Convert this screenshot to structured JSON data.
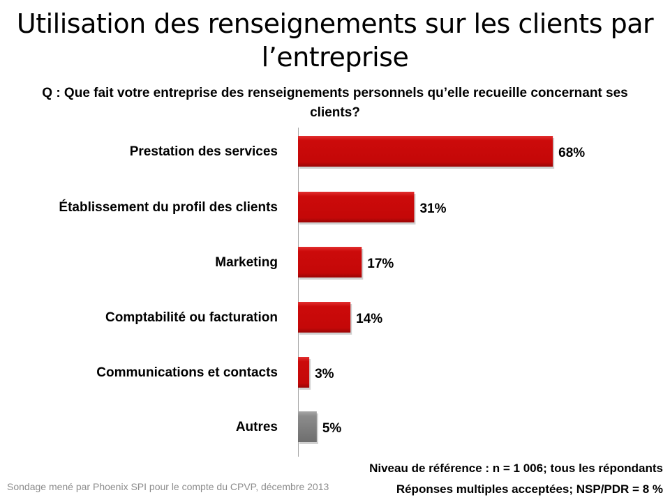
{
  "chart_data": {
    "type": "bar",
    "orientation": "horizontal",
    "title": "Utilisation des renseignements sur les clients par l’entreprise",
    "subtitle": "Q : Que fait votre entreprise des renseignements personnels qu’elle recueille concernant ses clients?",
    "categories": [
      "Prestation des services",
      "Établissement du profil des clients",
      "Marketing",
      "Comptabilité ou facturation",
      "Communications et contacts",
      "Autres"
    ],
    "values": [
      68,
      31,
      17,
      14,
      3,
      5
    ],
    "value_labels": [
      "68%",
      "31%",
      "17%",
      "14%",
      "3%",
      "5%"
    ],
    "colors": [
      "#cc0a0a",
      "#cc0a0a",
      "#cc0a0a",
      "#cc0a0a",
      "#cc0a0a",
      "#8c8c8c"
    ],
    "xlim": [
      0,
      100
    ],
    "grid": false,
    "xlabel": "",
    "ylabel": ""
  },
  "notes": {
    "base": "Niveau de référence : n = 1 006; tous les répondants",
    "multiple": "Réponses multiples acceptées; NSP/PDR = 8 %",
    "source": "Sondage mené par Phoenix SPI pour le compte du CPVP, décembre 2013"
  }
}
